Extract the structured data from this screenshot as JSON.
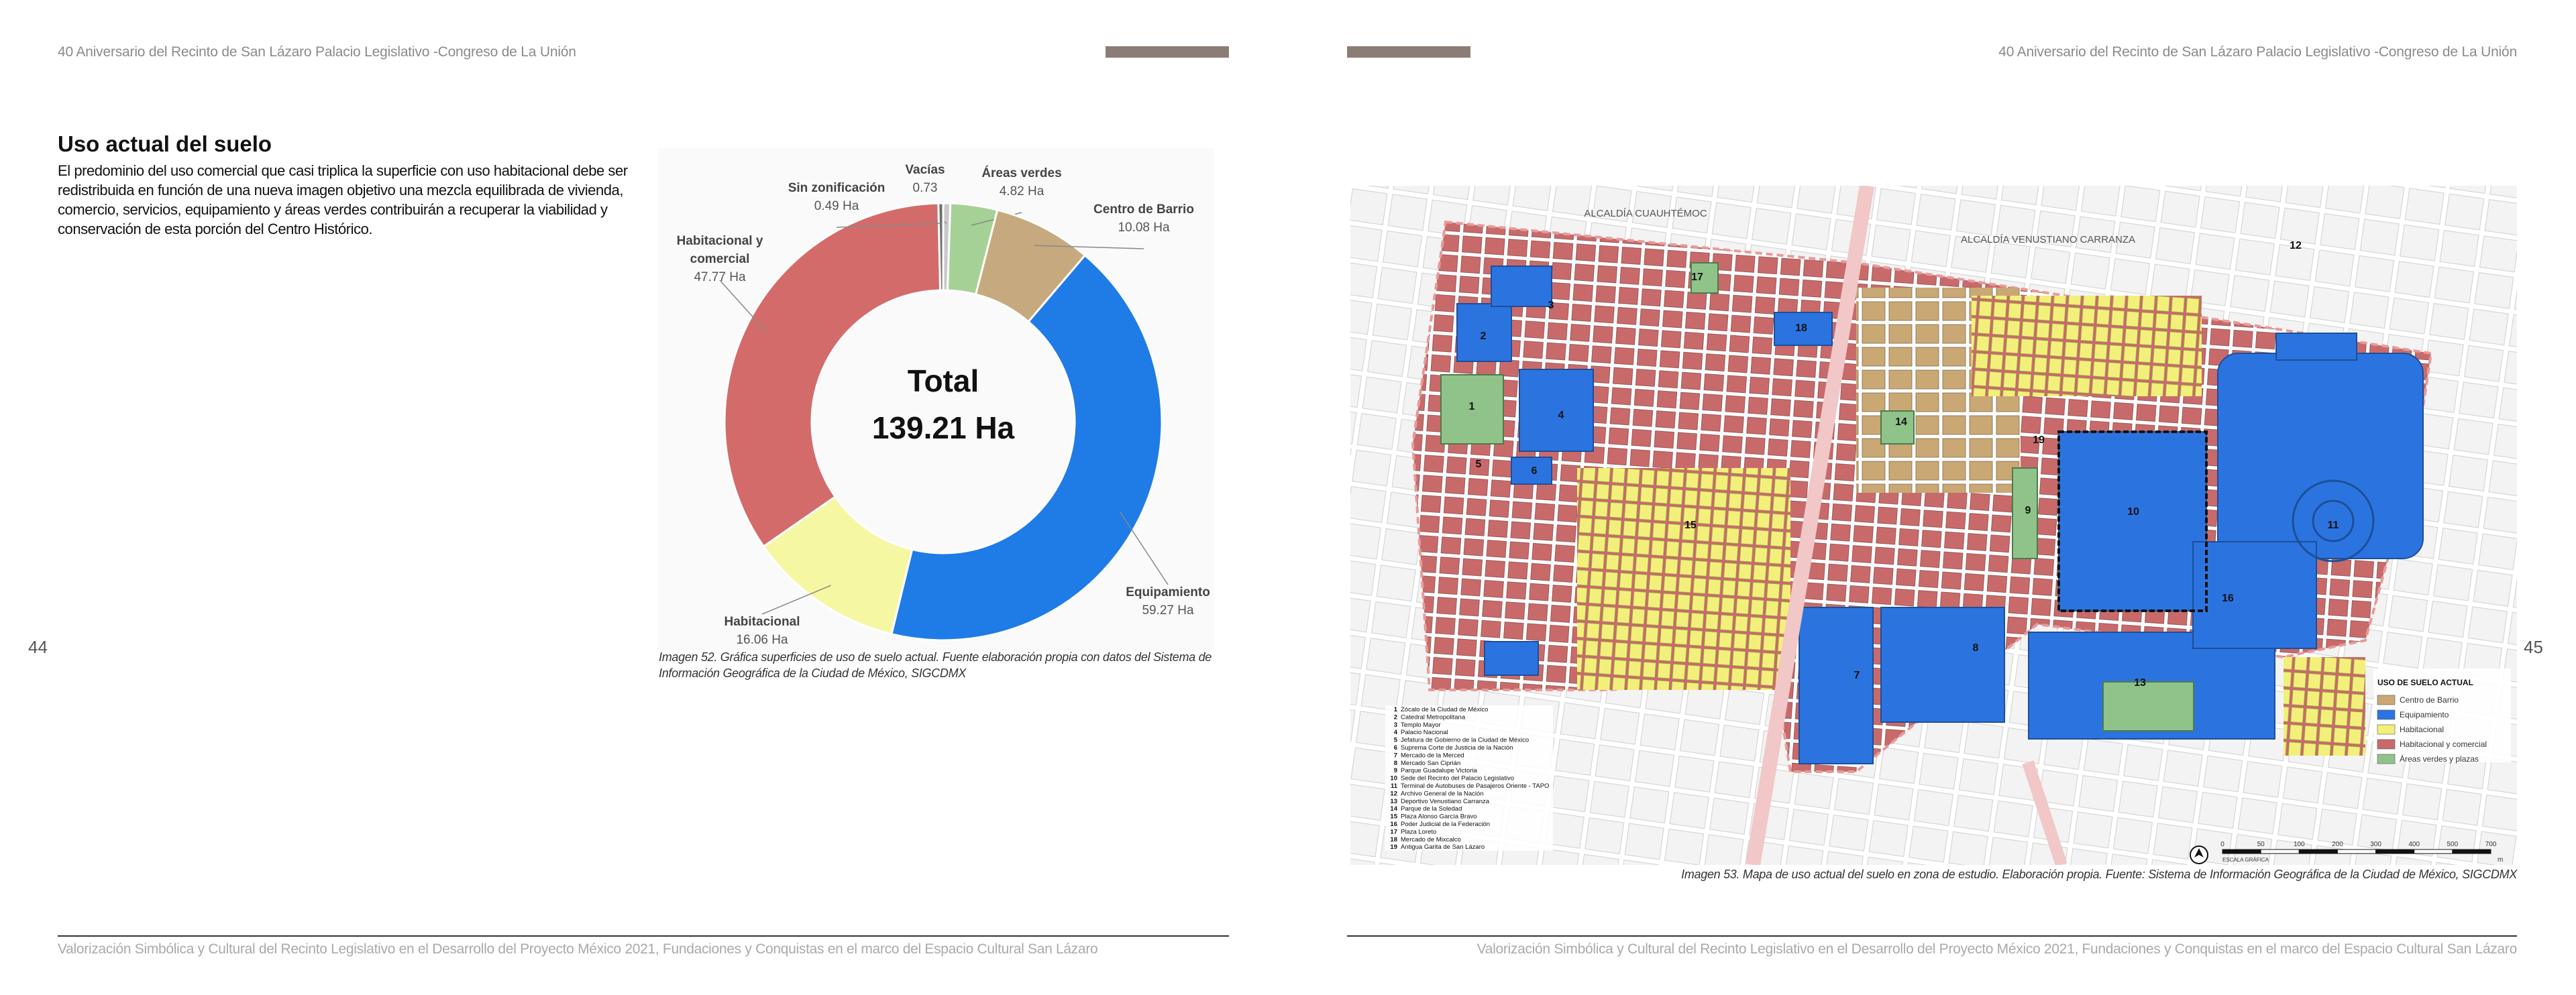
{
  "header": {
    "left": "40 Aniversario del Recinto de San Lázaro Palacio Legislativo -Congreso de La Unión",
    "right": "40 Aniversario del Recinto de San Lázaro Palacio Legislativo -Congreso de La Unión"
  },
  "page_numbers": [
    "44",
    "45"
  ],
  "section": {
    "title": "Uso actual del suelo",
    "body": "El predominio del uso comercial que casi triplica la superficie con uso habitacional debe ser redistribuida en función de una nueva imagen objetivo una mezcla equilibrada de vivienda, comercio, servicios, equipamiento y áreas verdes contribuirán a recuperar la viabilidad y conservación de esta porción del Centro Histórico."
  },
  "chart_data": {
    "type": "donut",
    "center_label": "Total",
    "center_value": "139.21 Ha",
    "categories": [
      "Vacías",
      "Áreas verdes",
      "Centro de Barrio",
      "Equipamiento",
      "Habitacional",
      "Habitacional y comercial",
      "Sin zonificación"
    ],
    "values": [
      0.73,
      4.82,
      10.08,
      59.27,
      16.06,
      47.77,
      0.49
    ],
    "value_labels": [
      "0.73",
      "4.82 Ha",
      "10.08 Ha",
      "59.27 Ha",
      "16.06 Ha",
      "47.77 Ha",
      "0.49 Ha"
    ],
    "colors": [
      "#c8c8c8",
      "#a6d196",
      "#c6a97e",
      "#1f7be6",
      "#f6f7a2",
      "#d46b6b",
      "#6e6e6e"
    ]
  },
  "chart_caption": "Imagen 52. Gráfica superficies de uso de suelo actual. Fuente elaboración propia con datos del Sistema de Información Geográfica de la Ciudad de México, SIGCDMX",
  "map": {
    "areas": [
      "ALCALDÍA CUAUHTÉMOC",
      "ALCALDÍA VENUSTIANO CARRANZA"
    ],
    "labels": [
      "1",
      "2",
      "3",
      "4",
      "5",
      "6",
      "7",
      "8",
      "9",
      "10",
      "11",
      "12",
      "13",
      "14",
      "15",
      "16",
      "17",
      "18",
      "19"
    ],
    "places": [
      "Zócalo de la Ciudad de México",
      "Catedral Metropolitana",
      "Templo Mayor",
      "Palacio Nacional",
      "Jefatura de Gobierno de la Ciudad de México",
      "Suprema Corte de Justicia de la Nación",
      "Mercado de la Merced",
      "Mercado San Ciprián",
      "Parque Guadalupe Victoria",
      "Sede del Recinto del Palacio Legislativo",
      "Terminal de Autobuses de Pasajeros Oriente - TAPO",
      "Archivo General de la Nación",
      "Deportivo Venustiano Carranza",
      "Parque de la Soledad",
      "Plaza Alonso García Bravo",
      "Poder Judicial de la Federación",
      "Plaza Loreto",
      "Mercado de Mixcalco",
      "Antigua Garita de San Lázaro"
    ],
    "legend": {
      "title": "USO DE SUELO ACTUAL",
      "items": [
        "Centro de Barrio",
        "Equipamiento",
        "Habitacional",
        "Habitacional y comercial",
        "Áreas verdes y plazas"
      ],
      "colors": [
        "#c9a874",
        "#2b74e0",
        "#f2f07a",
        "#c96a6a",
        "#8fc38a"
      ]
    },
    "scale": {
      "title": "ESCALA GRÁFICA",
      "ticks": [
        "0",
        "50",
        "100",
        "200",
        "300",
        "400",
        "500",
        "700"
      ],
      "unit": "m"
    }
  },
  "map_caption": "Imagen 53. Mapa de uso actual del suelo en zona de estudio. Elaboración propia. Fuente: Sistema de Información Geográfica de la Ciudad de México, SIGCDMX",
  "footer": {
    "left": "Valorización Simbólica y Cultural del Recinto Legislativo en el Desarrollo del Proyecto México 2021, Fundaciones y Conquistas en el marco del Espacio Cultural San Lázaro",
    "right": "Valorización Simbólica y Cultural del Recinto Legislativo en el Desarrollo del Proyecto México 2021, Fundaciones y Conquistas en el marco del Espacio Cultural San Lázaro"
  }
}
